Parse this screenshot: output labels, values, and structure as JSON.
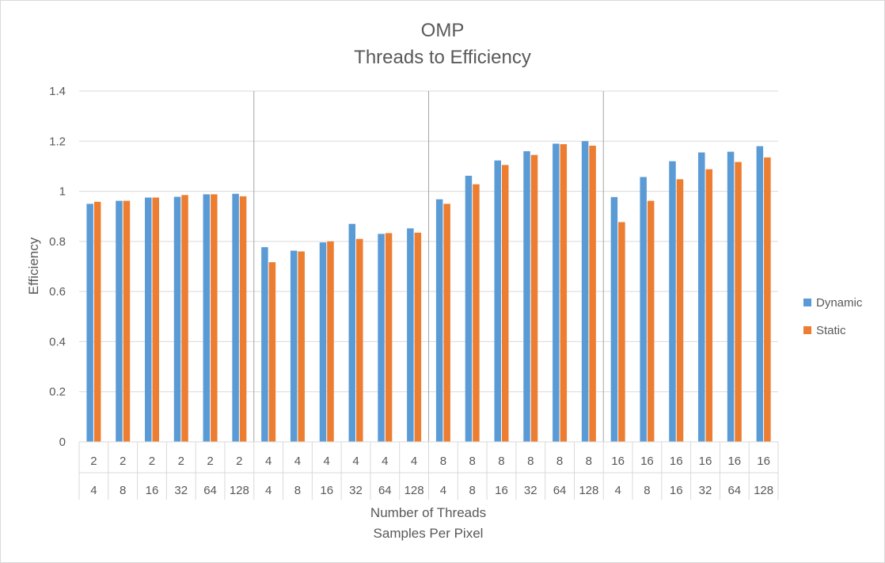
{
  "chart_data": {
    "type": "bar",
    "title": "OMP",
    "subtitle": "Threads to Efficiency",
    "xlabel": "Number of Threads",
    "xlabel2": "Samples Per Pixel",
    "ylabel": "Efficiency",
    "ylim": [
      0,
      1.4
    ],
    "yticks": [
      "0",
      "0.2",
      "0.4",
      "0.6",
      "0.8",
      "1",
      "1.2",
      "1.4"
    ],
    "grid": true,
    "legend_position": "right",
    "categories": [
      {
        "threads": "2",
        "samples": "4"
      },
      {
        "threads": "2",
        "samples": "8"
      },
      {
        "threads": "2",
        "samples": "16"
      },
      {
        "threads": "2",
        "samples": "32"
      },
      {
        "threads": "2",
        "samples": "64"
      },
      {
        "threads": "2",
        "samples": "128"
      },
      {
        "threads": "4",
        "samples": "4"
      },
      {
        "threads": "4",
        "samples": "8"
      },
      {
        "threads": "4",
        "samples": "16"
      },
      {
        "threads": "4",
        "samples": "32"
      },
      {
        "threads": "4",
        "samples": "64"
      },
      {
        "threads": "4",
        "samples": "128"
      },
      {
        "threads": "8",
        "samples": "4"
      },
      {
        "threads": "8",
        "samples": "8"
      },
      {
        "threads": "8",
        "samples": "16"
      },
      {
        "threads": "8",
        "samples": "32"
      },
      {
        "threads": "8",
        "samples": "64"
      },
      {
        "threads": "8",
        "samples": "128"
      },
      {
        "threads": "16",
        "samples": "4"
      },
      {
        "threads": "16",
        "samples": "8"
      },
      {
        "threads": "16",
        "samples": "16"
      },
      {
        "threads": "16",
        "samples": "32"
      },
      {
        "threads": "16",
        "samples": "64"
      },
      {
        "threads": "16",
        "samples": "128"
      }
    ],
    "series": [
      {
        "name": "Dynamic",
        "color": "#5b9bd5",
        "values": [
          0.95,
          0.962,
          0.975,
          0.978,
          0.988,
          0.99,
          0.777,
          0.763,
          0.796,
          0.87,
          0.83,
          0.852,
          0.968,
          1.062,
          1.123,
          1.16,
          1.19,
          1.2,
          0.977,
          1.057,
          1.12,
          1.155,
          1.158,
          1.18
        ]
      },
      {
        "name": "Static",
        "color": "#ed7d31",
        "values": [
          0.958,
          0.962,
          0.975,
          0.985,
          0.988,
          0.98,
          0.717,
          0.76,
          0.8,
          0.81,
          0.833,
          0.835,
          0.95,
          1.028,
          1.105,
          1.145,
          1.188,
          1.182,
          0.877,
          0.962,
          1.048,
          1.088,
          1.117,
          1.135
        ]
      }
    ]
  }
}
